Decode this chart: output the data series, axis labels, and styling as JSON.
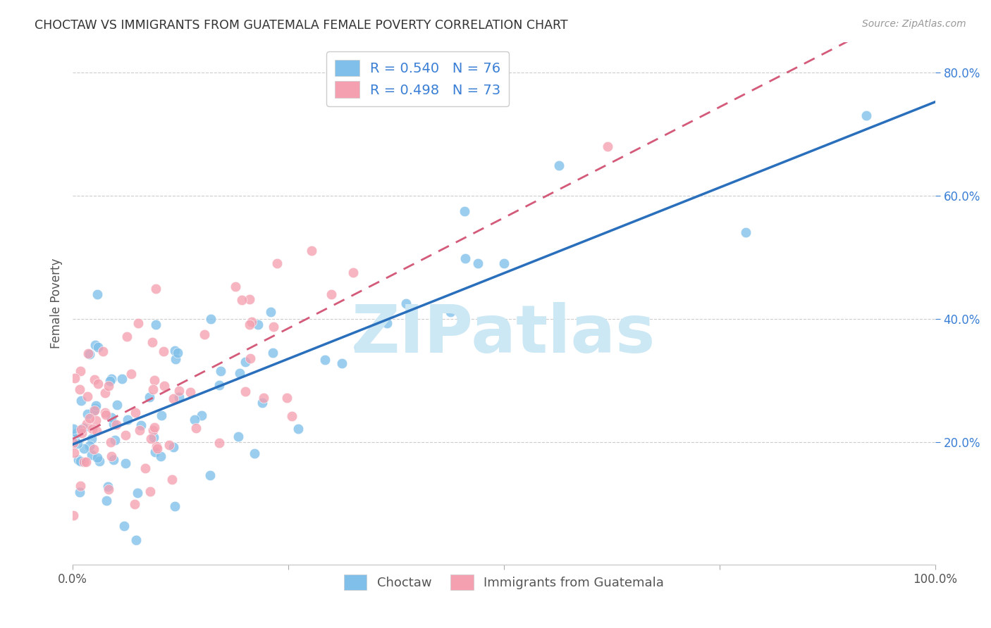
{
  "title": "CHOCTAW VS IMMIGRANTS FROM GUATEMALA FEMALE POVERTY CORRELATION CHART",
  "source": "Source: ZipAtlas.com",
  "ylabel": "Female Poverty",
  "legend_r1": "R = 0.540",
  "legend_n1": "N = 76",
  "legend_r2": "R = 0.498",
  "legend_n2": "N = 73",
  "color_blue": "#7fbfea",
  "color_pink": "#f4a0b0",
  "color_blue_line": "#2a6fbb",
  "color_pink_line": "#d45a7a",
  "color_grid": "#cccccc",
  "color_title": "#333333",
  "color_source": "#999999",
  "watermark_color": "#cde8f5",
  "R1": 0.54,
  "N1": 76,
  "R2": 0.498,
  "N2": 73,
  "seed": 42,
  "xlim": [
    0.0,
    1.0
  ],
  "ylim": [
    0.0,
    0.85
  ]
}
